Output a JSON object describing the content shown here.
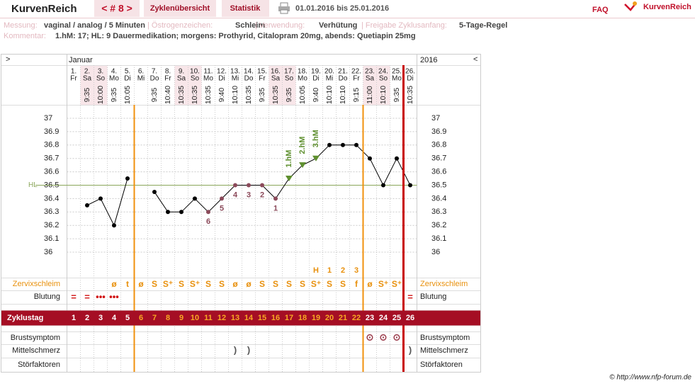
{
  "header": {
    "logo": "KurvenReich",
    "cycle_nav": "< # 8 >",
    "tabs": [
      "Zyklenübersicht",
      "Statistik"
    ],
    "date_range": "01.01.2016 bis 25.01.2016",
    "faq": "FAQ",
    "brand": "KurvenReich"
  },
  "info": {
    "fields": [
      {
        "label": "Messung:",
        "value": "vaginal / analog / 5 Minuten"
      },
      {
        "label": "| Östrogenzeichen:",
        "value": "Schleim"
      },
      {
        "label": "| Verwendung:",
        "value": "Verhütung"
      },
      {
        "label": "| Freigabe Zyklusanfang:",
        "value": "5-Tage-Regel"
      }
    ],
    "comment_label": "Kommentar:",
    "comment": "1.hM: 17; HL: 9 Dauermedikation; morgens: Prothyrid, Citalopram 20mg, abends: Quetiapin 25mg"
  },
  "chart_data": {
    "type": "line",
    "nav_left": ">",
    "month": "Januar",
    "year": "2016",
    "nav_right": "<",
    "categories": [
      "1.",
      "2.",
      "3.",
      "4.",
      "5.",
      "6.",
      "7.",
      "8.",
      "9.",
      "10.",
      "11.",
      "12.",
      "13.",
      "14.",
      "15.",
      "16.",
      "17.",
      "18.",
      "19.",
      "20.",
      "21.",
      "22.",
      "23.",
      "24.",
      "25.",
      "26."
    ],
    "weekdays": [
      "Fr",
      "Sa",
      "So",
      "Mo",
      "Di",
      "Mi",
      "Do",
      "Fr",
      "Sa",
      "So",
      "Mo",
      "Di",
      "Mi",
      "Do",
      "Fr",
      "Sa",
      "So",
      "Mo",
      "Di",
      "Mi",
      "Do",
      "Fr",
      "Sa",
      "So",
      "Mo",
      "Di"
    ],
    "times": [
      null,
      "9:35",
      "10:00",
      "9:35",
      "10:05",
      null,
      "9:35",
      "10:40",
      "10:35",
      "10:35",
      "10:35",
      "9:40",
      "10:10",
      "10:35",
      "9:35",
      "10:35",
      "9:35",
      "10:05",
      "9:40",
      "10:10",
      "10:10",
      "9:15",
      "11:00",
      "10:10",
      "9:35",
      "10:35"
    ],
    "values": [
      null,
      36.35,
      36.4,
      36.2,
      36.55,
      null,
      36.45,
      36.3,
      36.3,
      36.4,
      36.3,
      36.4,
      36.5,
      36.5,
      36.5,
      36.4,
      36.55,
      36.65,
      36.7,
      36.8,
      36.8,
      36.8,
      36.7,
      36.5,
      36.7,
      36.5
    ],
    "color": "#000000",
    "point_labels": [
      null,
      null,
      null,
      null,
      null,
      null,
      null,
      null,
      null,
      null,
      6,
      5,
      4,
      3,
      2,
      1,
      null,
      null,
      null,
      null,
      null,
      null,
      null,
      null,
      null,
      null
    ],
    "count_color": "#8b4a5a",
    "hm_labels": [
      null,
      null,
      null,
      null,
      null,
      null,
      null,
      null,
      null,
      null,
      null,
      null,
      null,
      null,
      null,
      null,
      "1.hM",
      "2.hM",
      "3.hM",
      null,
      null,
      null,
      null,
      null,
      null,
      null
    ],
    "hm_color": "#5e8f2e",
    "peak_labels": [
      null,
      null,
      null,
      null,
      null,
      null,
      null,
      null,
      null,
      null,
      null,
      null,
      null,
      null,
      null,
      null,
      null,
      null,
      "H",
      "1",
      "2",
      "3",
      null,
      null,
      null,
      null
    ],
    "hl": {
      "label": "HL",
      "value": 36.5,
      "color": "#8aa65a"
    },
    "ylim": [
      35.9,
      37.1
    ],
    "yticks": [
      36,
      36.1,
      36.2,
      36.3,
      36.4,
      36.5,
      36.6,
      36.7,
      36.8,
      36.9,
      37
    ],
    "grid": true,
    "phase_lines": [
      {
        "after": 5,
        "color": "#f0900c"
      },
      {
        "after": 22,
        "color": "#f0900c"
      },
      {
        "after": 25,
        "color": "#c80000"
      }
    ],
    "shaded_columns": [
      2,
      3,
      9,
      10,
      16,
      17,
      23,
      24
    ],
    "rows": [
      {
        "label": "Zervixschleim",
        "color": "#e8900c",
        "values": [
          null,
          null,
          null,
          "ø",
          "t",
          "ø",
          "S",
          "S⁺",
          "S",
          "S⁺",
          "S",
          "S",
          "ø",
          "ø",
          "S",
          "S",
          "S",
          "S",
          "S⁺",
          "S",
          "S",
          "f",
          "ø",
          "S⁺",
          "S⁺",
          null
        ]
      },
      {
        "label": "Blutung",
        "color": "#d01010",
        "values": [
          "=",
          "=",
          "•••",
          "•••",
          null,
          null,
          null,
          null,
          null,
          null,
          null,
          null,
          null,
          null,
          null,
          null,
          null,
          null,
          null,
          null,
          null,
          null,
          null,
          null,
          null,
          "="
        ]
      }
    ],
    "cycle_row": {
      "label": "Zyklustag",
      "values": [
        1,
        2,
        3,
        4,
        5,
        6,
        7,
        8,
        9,
        10,
        11,
        12,
        13,
        14,
        15,
        16,
        17,
        18,
        19,
        20,
        21,
        22,
        23,
        24,
        25,
        26
      ],
      "background": "#a50e24",
      "color": "#ffffff",
      "phase_color": "#f7a823"
    },
    "bottom_rows": [
      {
        "label": "Brustsymptom",
        "color": "#9b3b4b",
        "values": [
          null,
          null,
          null,
          null,
          null,
          null,
          null,
          null,
          null,
          null,
          null,
          null,
          null,
          null,
          null,
          null,
          null,
          null,
          null,
          null,
          null,
          null,
          "⊙",
          "⊙",
          "⊙",
          null
        ]
      },
      {
        "label": "Mittelschmerz",
        "color": "#555555",
        "values": [
          null,
          null,
          null,
          null,
          null,
          null,
          null,
          null,
          null,
          null,
          null,
          null,
          ")",
          ")",
          null,
          null,
          null,
          null,
          null,
          null,
          null,
          null,
          null,
          null,
          null,
          ")"
        ]
      },
      {
        "label": "Störfaktoren"
      }
    ]
  },
  "footer": "© http://www.nfp-forum.de"
}
